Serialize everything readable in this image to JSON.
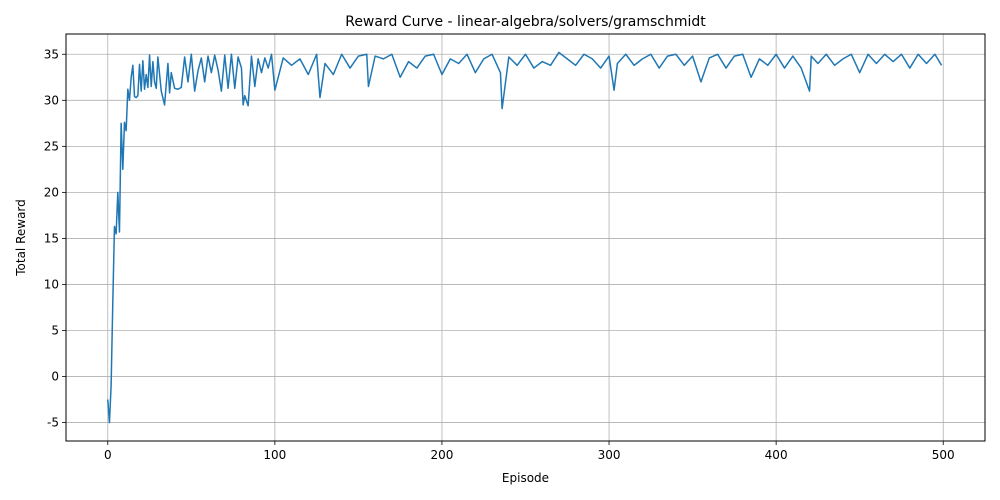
{
  "chart_data": {
    "type": "line",
    "title": "Reward Curve - linear-algebra/solvers/gramschmidt",
    "xlabel": "Episode",
    "ylabel": "Total Reward",
    "xlim": [
      -25,
      525
    ],
    "ylim": [
      -7,
      37.2
    ],
    "xticks": [
      0,
      100,
      200,
      300,
      400,
      500
    ],
    "yticks": [
      -5,
      0,
      5,
      10,
      15,
      20,
      25,
      30,
      35
    ],
    "grid": true,
    "series": [
      {
        "color": "#1f77b4",
        "x": [
          0,
          1,
          2,
          3,
          4,
          5,
          6,
          7,
          8,
          9,
          10,
          11,
          12,
          13,
          14,
          15,
          16,
          17,
          18,
          19,
          20,
          21,
          22,
          23,
          24,
          25,
          26,
          27,
          28,
          29,
          30,
          32,
          34,
          36,
          37,
          38,
          40,
          42,
          44,
          46,
          48,
          50,
          52,
          54,
          56,
          58,
          60,
          62,
          64,
          66,
          68,
          70,
          72,
          74,
          76,
          78,
          80,
          81,
          82,
          84,
          86,
          88,
          90,
          92,
          94,
          96,
          98,
          100,
          105,
          110,
          115,
          120,
          125,
          127,
          130,
          135,
          140,
          145,
          150,
          155,
          156,
          160,
          165,
          170,
          175,
          180,
          185,
          190,
          195,
          200,
          205,
          210,
          215,
          220,
          225,
          230,
          235,
          236,
          240,
          245,
          250,
          255,
          260,
          265,
          270,
          275,
          280,
          285,
          290,
          295,
          300,
          303,
          305,
          310,
          315,
          320,
          325,
          330,
          335,
          340,
          345,
          350,
          355,
          360,
          365,
          370,
          375,
          380,
          385,
          390,
          395,
          400,
          405,
          410,
          415,
          420,
          421,
          425,
          430,
          435,
          440,
          445,
          450,
          455,
          460,
          465,
          470,
          475,
          480,
          485,
          490,
          495,
          499
        ],
        "values": [
          -2.5,
          -5.0,
          -1.0,
          8.0,
          16.3,
          15.5,
          20.0,
          15.7,
          27.5,
          22.5,
          27.6,
          26.7,
          31.2,
          30.0,
          32.5,
          33.8,
          30.4,
          30.3,
          30.5,
          33.9,
          31.0,
          34.3,
          31.2,
          32.8,
          31.4,
          34.9,
          31.5,
          34.2,
          32.0,
          31.3,
          34.7,
          31.0,
          29.5,
          34.0,
          30.8,
          33.0,
          31.3,
          31.2,
          31.4,
          34.7,
          32.0,
          35.0,
          31.0,
          33.2,
          34.6,
          32.0,
          34.8,
          33.0,
          34.9,
          33.3,
          31.0,
          34.9,
          31.3,
          35.0,
          31.3,
          34.7,
          33.5,
          29.5,
          30.5,
          29.4,
          34.8,
          31.5,
          34.5,
          33.0,
          34.6,
          33.5,
          35.0,
          31.1,
          34.6,
          33.8,
          34.5,
          32.8,
          35.0,
          30.3,
          34.0,
          32.8,
          35.0,
          33.5,
          34.8,
          35.0,
          31.5,
          34.8,
          34.5,
          35.0,
          32.5,
          34.2,
          33.5,
          34.8,
          35.0,
          32.8,
          34.5,
          34.0,
          35.0,
          33.0,
          34.5,
          35.0,
          33.0,
          29.1,
          34.7,
          33.8,
          35.0,
          33.5,
          34.2,
          33.8,
          35.2,
          34.5,
          33.8,
          35.0,
          34.5,
          33.5,
          34.8,
          31.1,
          34.0,
          35.0,
          33.8,
          34.5,
          35.0,
          33.5,
          34.8,
          35.0,
          33.8,
          34.8,
          32.0,
          34.6,
          35.0,
          33.5,
          34.8,
          35.0,
          32.5,
          34.5,
          33.8,
          35.0,
          33.5,
          34.8,
          33.5,
          31.0,
          34.8,
          34.0,
          35.0,
          33.8,
          34.5,
          35.0,
          33.0,
          35.0,
          34.0,
          35.0,
          34.2,
          35.0,
          33.5,
          35.0,
          34.0,
          35.0,
          33.8
        ]
      }
    ]
  }
}
